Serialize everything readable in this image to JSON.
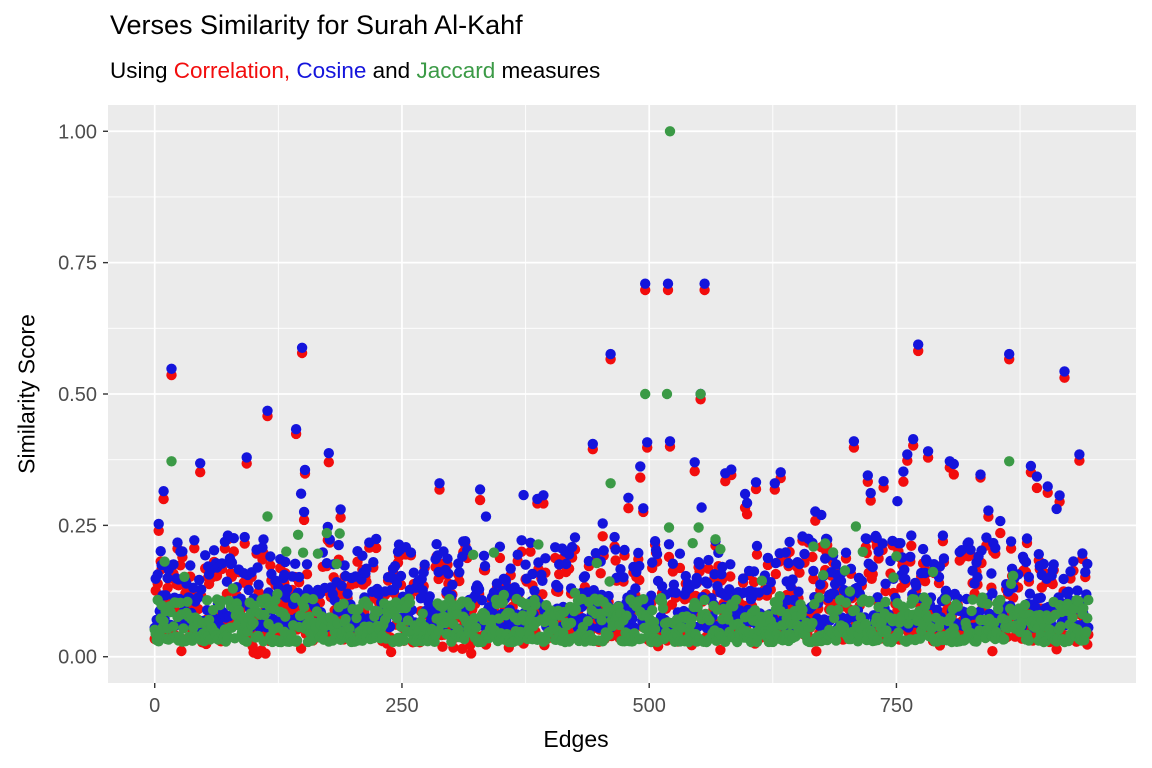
{
  "title": "Verses Similarity for Surah Al-Kahf",
  "subtitle": {
    "prefix": "Using ",
    "correlation_word": "Correlation,",
    "sep1": " ",
    "cosine_word": "Cosine",
    "sep2": " and ",
    "jaccard_word": "Jaccard",
    "suffix": " measures"
  },
  "colors": {
    "correlation": "#f20d0d",
    "cosine": "#1414dc",
    "jaccard": "#3b9a46",
    "panel_background": "#ebebeb",
    "gridline": "#ffffff",
    "tick_label": "#4d4d4d",
    "tick_mark": "#333333",
    "axis_title": "#000000"
  },
  "chart_data": {
    "type": "scatter",
    "title": "Verses Similarity for Surah Al-Kahf",
    "subtitle_text": "Using Correlation, Cosine and Jaccard measures",
    "xlabel": "Edges",
    "ylabel": "Similarity Score",
    "legend": "none",
    "grid": "on",
    "x_domain": [
      0,
      945
    ],
    "y_domain": [
      0,
      1
    ],
    "expansion": 0.05,
    "x_ticks": {
      "values": [
        0,
        250,
        500,
        750
      ],
      "labels": [
        "0",
        "250",
        "500",
        "750"
      ]
    },
    "x_minor_ticks": [
      125,
      375,
      625,
      875
    ],
    "y_ticks": {
      "values": [
        0,
        0.25,
        0.5,
        0.75,
        1.0
      ],
      "labels": [
        "0.00",
        "0.25",
        "0.50",
        "0.75",
        "1.00"
      ]
    },
    "y_minor_ticks": [
      0.125,
      0.375,
      0.625,
      0.875
    ],
    "n_edges": 945,
    "series": [
      {
        "name": "Correlation",
        "color_key": "correlation"
      },
      {
        "name": "Cosine",
        "color_key": "cosine"
      },
      {
        "name": "Jaccard",
        "color_key": "jaccard"
      }
    ],
    "generator": {
      "seed": 7,
      "cosine": {
        "base": 0.055,
        "spread": 0.175,
        "pow": 2.0,
        "spike_p": 0.055,
        "spike_min": 0.05,
        "spike_max": 0.21
      },
      "correlation": {
        "off_min": 0.005,
        "off_max": 0.028,
        "dip_p": 0.015,
        "dip_min": 0.006,
        "dip_max": 0.035
      },
      "jaccard": {
        "base": 0.028,
        "spread": 0.085,
        "pow": 1.7,
        "spike_p": 0.05,
        "spike_min": 0.04,
        "spike_max": 0.16
      },
      "clamp": [
        0.004,
        1.0
      ]
    },
    "outliers": {
      "correlation": [
        [
          9,
          0.3
        ],
        [
          17,
          0.536
        ],
        [
          100,
          0.008
        ],
        [
          104,
          0.005
        ],
        [
          108,
          0.012
        ],
        [
          112,
          0.006
        ],
        [
          114,
          0.458
        ],
        [
          143,
          0.424
        ],
        [
          149,
          0.578
        ],
        [
          235,
          0.025
        ],
        [
          288,
          0.318
        ],
        [
          291,
          0.019
        ],
        [
          311,
          0.015
        ],
        [
          319,
          0.022
        ],
        [
          335,
          0.023
        ],
        [
          373,
          0.025
        ],
        [
          394,
          0.022
        ],
        [
          443,
          0.395
        ],
        [
          461,
          0.566
        ],
        [
          496,
          0.698
        ],
        [
          498,
          0.398
        ],
        [
          509,
          0.02
        ],
        [
          519,
          0.698
        ],
        [
          521,
          0.4
        ],
        [
          543,
          0.022
        ],
        [
          546,
          0.353
        ],
        [
          552,
          0.49
        ],
        [
          556,
          0.698
        ],
        [
          577,
          0.334
        ],
        [
          607,
          0.025
        ],
        [
          608,
          0.319
        ],
        [
          627,
          0.318
        ],
        [
          633,
          0.34
        ],
        [
          707,
          0.398
        ],
        [
          721,
          0.333
        ],
        [
          737,
          0.322
        ],
        [
          761,
          0.373
        ],
        [
          767,
          0.402
        ],
        [
          772,
          0.582
        ],
        [
          782,
          0.379
        ],
        [
          804,
          0.36
        ],
        [
          864,
          0.566
        ],
        [
          886,
          0.351
        ],
        [
          903,
          0.312
        ],
        [
          915,
          0.295
        ],
        [
          920,
          0.531
        ],
        [
          935,
          0.373
        ]
      ],
      "cosine": [
        [
          9,
          0.315
        ],
        [
          17,
          0.548
        ],
        [
          114,
          0.468
        ],
        [
          143,
          0.433
        ],
        [
          149,
          0.588
        ],
        [
          288,
          0.33
        ],
        [
          443,
          0.405
        ],
        [
          461,
          0.576
        ],
        [
          496,
          0.71
        ],
        [
          498,
          0.408
        ],
        [
          519,
          0.71
        ],
        [
          521,
          0.41
        ],
        [
          546,
          0.37
        ],
        [
          552,
          0.5
        ],
        [
          553,
          0.284
        ],
        [
          556,
          0.71
        ],
        [
          577,
          0.349
        ],
        [
          608,
          0.332
        ],
        [
          627,
          0.33
        ],
        [
          633,
          0.351
        ],
        [
          674,
          0.27
        ],
        [
          707,
          0.41
        ],
        [
          721,
          0.345
        ],
        [
          737,
          0.334
        ],
        [
          751,
          0.296
        ],
        [
          761,
          0.385
        ],
        [
          767,
          0.414
        ],
        [
          772,
          0.594
        ],
        [
          782,
          0.391
        ],
        [
          804,
          0.372
        ],
        [
          864,
          0.576
        ],
        [
          886,
          0.363
        ],
        [
          903,
          0.324
        ],
        [
          915,
          0.307
        ],
        [
          920,
          0.543
        ],
        [
          935,
          0.385
        ]
      ],
      "jaccard": [
        [
          17,
          0.372
        ],
        [
          114,
          0.267
        ],
        [
          133,
          0.2
        ],
        [
          150,
          0.198
        ],
        [
          165,
          0.196
        ],
        [
          461,
          0.33
        ],
        [
          496,
          0.5
        ],
        [
          518,
          0.5
        ],
        [
          520,
          0.246
        ],
        [
          521,
          1.0
        ],
        [
          550,
          0.246
        ],
        [
          552,
          0.5
        ],
        [
          709,
          0.248
        ],
        [
          864,
          0.372
        ]
      ]
    }
  }
}
